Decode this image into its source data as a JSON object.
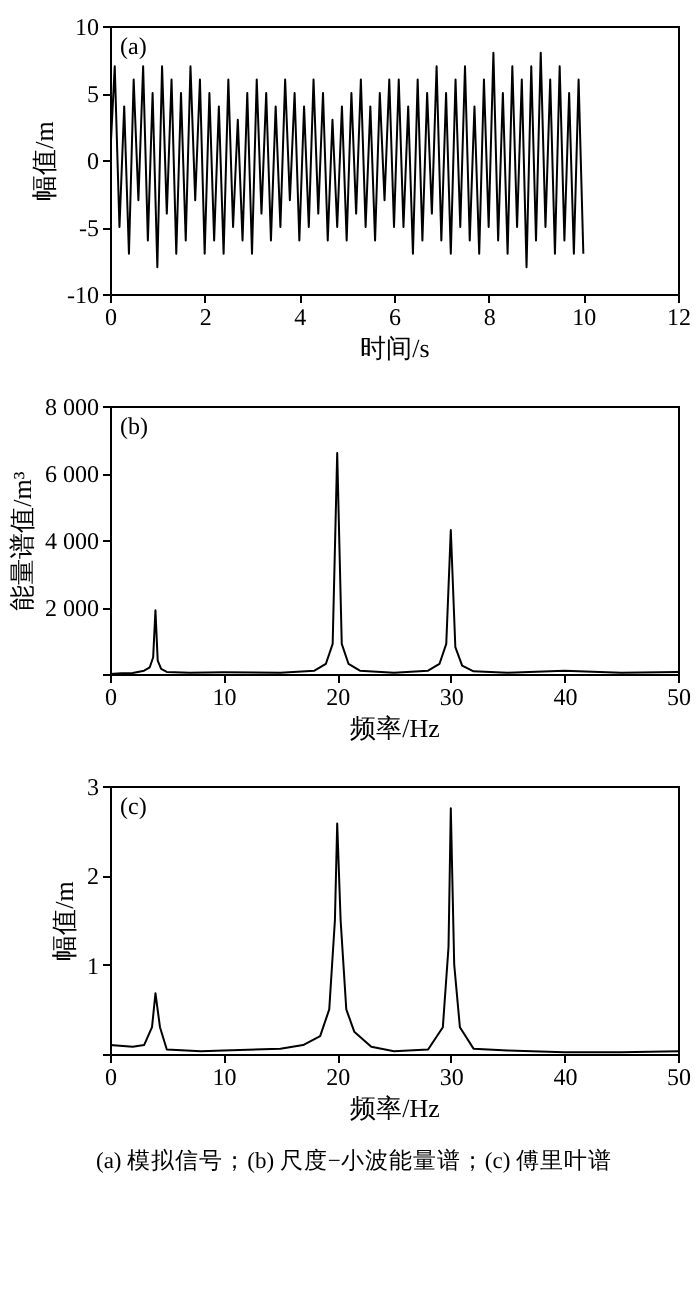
{
  "chart_data": [
    {
      "type": "line",
      "xlabel": "时间/s",
      "ylabel": "幅值/m",
      "annotations": [
        "(a)"
      ],
      "xlim": [
        0,
        12
      ],
      "xticks": [
        0,
        2,
        4,
        6,
        8,
        10,
        12
      ],
      "ylim": [
        -10,
        10
      ],
      "yticks": [
        -10,
        -5,
        0,
        5,
        10
      ],
      "series": [
        {
          "color": "#000000",
          "x": [
            0,
            0.1,
            0.2,
            0.3,
            0.4,
            0.5,
            0.6,
            0.7,
            0.8,
            0.9,
            1,
            1.1,
            1.2,
            1.3,
            1.4,
            1.5,
            1.6,
            1.7,
            1.8,
            1.9,
            2,
            2.1,
            2.2,
            2.3,
            2.4,
            2.5,
            2.6,
            2.7,
            2.8,
            2.9,
            3,
            3.1,
            3.2,
            3.3,
            3.4,
            3.5,
            3.6,
            3.7,
            3.8,
            3.9,
            4,
            4.1,
            4.2,
            4.3,
            4.4,
            4.5,
            4.6,
            4.7,
            4.8,
            4.9,
            5,
            5.1,
            5.2,
            5.3,
            5.4,
            5.5,
            5.6,
            5.7,
            5.8,
            5.9,
            6,
            6.1,
            6.2,
            6.3,
            6.4,
            6.5,
            6.6,
            6.7,
            6.8,
            6.9,
            7,
            7.1,
            7.2,
            7.3,
            7.4,
            7.5,
            7.6,
            7.7,
            7.8,
            7.9,
            8,
            8.1,
            8.2,
            8.3,
            8.4,
            8.5,
            8.6,
            8.7,
            8.8,
            8.9,
            9,
            9.1,
            9.2,
            9.3,
            9.4,
            9.5,
            9.6,
            9.7,
            9.8,
            9.9,
            10
          ],
          "values": [
            0,
            7,
            -5,
            4,
            -7,
            6,
            -3,
            7,
            -6,
            5,
            -8,
            7,
            -4,
            6,
            -7,
            5,
            -6,
            7,
            -3,
            6,
            -7,
            5,
            -6,
            4,
            -7,
            6,
            -5,
            3,
            -6,
            5,
            -7,
            6,
            -4,
            5,
            -6,
            4,
            -5,
            6,
            -3,
            5,
            -6,
            4,
            -5,
            6,
            -4,
            5,
            -6,
            3,
            -5,
            4,
            -6,
            5,
            -4,
            6,
            -5,
            4,
            -6,
            5,
            -3,
            6,
            -5,
            6,
            -5,
            4,
            -7,
            6,
            -6,
            5,
            -4,
            7,
            -6,
            5,
            -7,
            6,
            -5,
            7,
            -6,
            4,
            -7,
            6,
            -5,
            8,
            -6,
            5,
            -7,
            7,
            -5,
            6,
            -8,
            7,
            -6,
            8,
            -5,
            6,
            -7,
            7,
            -6,
            5,
            -7,
            6,
            -7
          ]
        }
      ]
    },
    {
      "type": "line",
      "xlabel": "频率/Hz",
      "ylabel": "能量谱值/m³",
      "annotations": [
        "(b)"
      ],
      "xlim": [
        0,
        50
      ],
      "xticks": [
        0,
        10,
        20,
        30,
        40,
        50
      ],
      "ylim": [
        0,
        8000
      ],
      "yticks": [
        {
          "value": 0,
          "label": null
        },
        {
          "value": 2000,
          "label": "2 000"
        },
        {
          "value": 4000,
          "label": "4 000"
        },
        {
          "value": 6000,
          "label": "6 000"
        },
        {
          "value": 8000,
          "label": "8 000"
        }
      ],
      "series": [
        {
          "color": "#000000",
          "x": [
            0,
            1,
            2,
            3,
            3.5,
            3.8,
            4,
            4.2,
            4.5,
            5,
            7,
            10,
            15,
            18,
            19,
            19.6,
            20,
            20.4,
            21,
            22,
            25,
            28,
            29,
            29.6,
            30,
            30.4,
            31,
            32,
            35,
            40,
            45,
            50
          ],
          "values": [
            0,
            20,
            30,
            100,
            200,
            500,
            1900,
            400,
            150,
            60,
            40,
            50,
            40,
            100,
            300,
            900,
            6600,
            900,
            300,
            100,
            40,
            100,
            300,
            900,
            4300,
            800,
            250,
            80,
            40,
            100,
            40,
            60
          ]
        }
      ]
    },
    {
      "type": "line",
      "xlabel": "频率/Hz",
      "ylabel": "幅值/m",
      "annotations": [
        "(c)",
        "(a) 模拟信号；(b) 尺度−小波能量谱；(c) 傅里叶谱"
      ],
      "xlim": [
        0,
        50
      ],
      "xticks": [
        0,
        10,
        20,
        30,
        40,
        50
      ],
      "ylim": [
        0,
        3
      ],
      "yticks": [
        {
          "value": 0,
          "label": null
        },
        1,
        2,
        3
      ],
      "series": [
        {
          "color": "#000000",
          "x": [
            0,
            2,
            3,
            3.7,
            4,
            4.4,
            5,
            8,
            10,
            15,
            17,
            18.5,
            19.3,
            19.8,
            20,
            20.3,
            20.8,
            21.5,
            23,
            25,
            28,
            29.3,
            29.8,
            30,
            30.3,
            30.8,
            32,
            35,
            40,
            45,
            50
          ],
          "values": [
            0.1,
            0.08,
            0.1,
            0.3,
            0.68,
            0.3,
            0.05,
            0.03,
            0.04,
            0.06,
            0.1,
            0.2,
            0.5,
            1.5,
            2.58,
            1.5,
            0.5,
            0.25,
            0.08,
            0.03,
            0.05,
            0.3,
            1.2,
            2.75,
            1.0,
            0.3,
            0.06,
            0.04,
            0.02,
            0.02,
            0.03
          ]
        }
      ]
    }
  ]
}
